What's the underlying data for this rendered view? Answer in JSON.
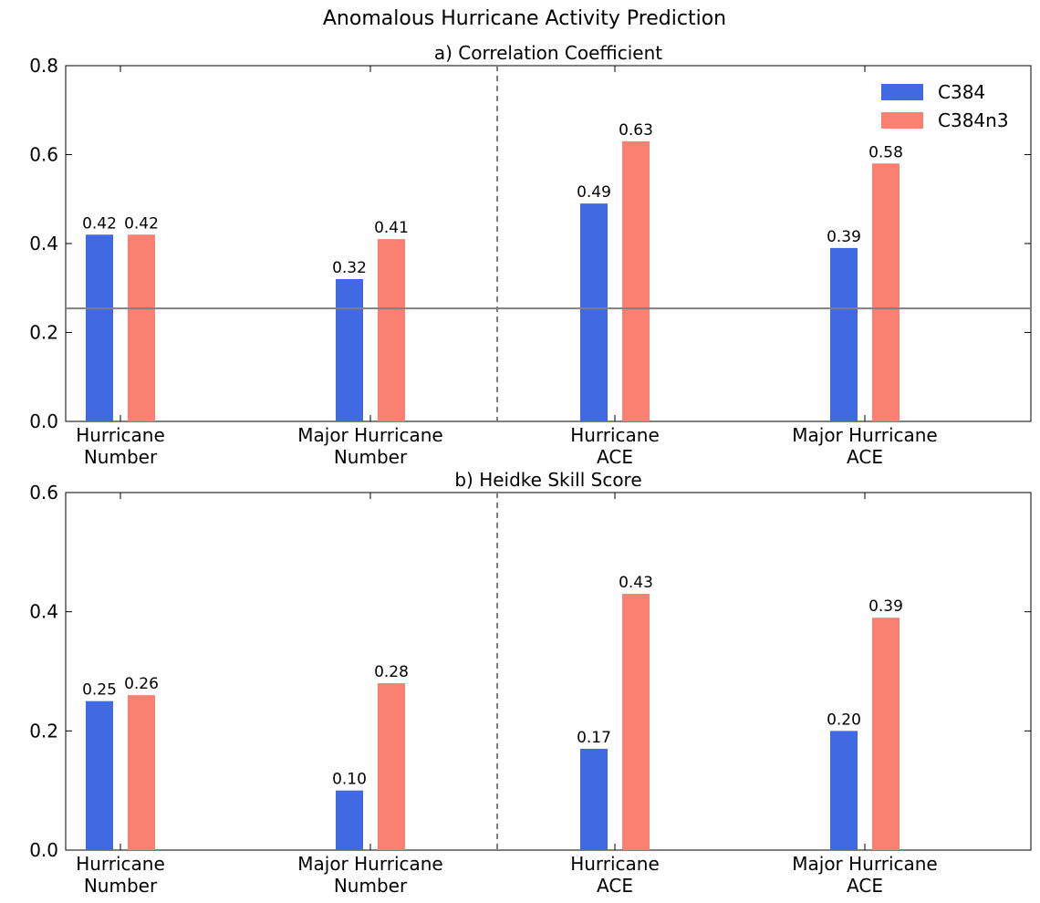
{
  "figure": {
    "title": "Anomalous Hurricane Activity Prediction"
  },
  "legend": {
    "placement": "top-right",
    "items": [
      {
        "label": "C384",
        "color": "#4169e1"
      },
      {
        "label": "C384n3",
        "color": "#fa8072"
      }
    ]
  },
  "chart_data": [
    {
      "type": "bar",
      "title": "a) Correlation Coefficient",
      "categories": [
        "Hurricane Number",
        "Major Hurricane Number",
        "Hurricane ACE",
        "Major Hurricane ACE"
      ],
      "category_lines": [
        [
          "Hurricane",
          "Number"
        ],
        [
          "Major Hurricane",
          "Number"
        ],
        [
          "Hurricane",
          "ACE"
        ],
        [
          "Major Hurricane",
          "ACE"
        ]
      ],
      "series": [
        {
          "name": "C384",
          "color": "#4169e1",
          "values": [
            0.42,
            0.32,
            0.49,
            0.39
          ],
          "labels": [
            "0.42",
            "0.32",
            "0.49",
            "0.39"
          ]
        },
        {
          "name": "C384n3",
          "color": "#fa8072",
          "values": [
            0.42,
            0.41,
            0.63,
            0.58
          ],
          "labels": [
            "0.42",
            "0.41",
            "0.63",
            "0.58"
          ]
        }
      ],
      "ylim": [
        0,
        0.8
      ],
      "yticks": [
        "0.0",
        "0.2",
        "0.4",
        "0.6",
        "0.8"
      ],
      "reference_line": {
        "y": 0.254,
        "color": "#808080"
      },
      "divider": "dashed vertical line between Major Hurricane Number and Hurricane ACE",
      "grid": false,
      "legend_placement": "top-right"
    },
    {
      "type": "bar",
      "title": "b) Heidke Skill Score",
      "categories": [
        "Hurricane Number",
        "Major Hurricane Number",
        "Hurricane ACE",
        "Major Hurricane ACE"
      ],
      "category_lines": [
        [
          "Hurricane",
          "Number"
        ],
        [
          "Major Hurricane",
          "Number"
        ],
        [
          "Hurricane",
          "ACE"
        ],
        [
          "Major Hurricane",
          "ACE"
        ]
      ],
      "series": [
        {
          "name": "C384",
          "color": "#4169e1",
          "values": [
            0.25,
            0.1,
            0.17,
            0.2
          ],
          "labels": [
            "0.25",
            "0.10",
            "0.17",
            "0.20"
          ]
        },
        {
          "name": "C384n3",
          "color": "#fa8072",
          "values": [
            0.26,
            0.28,
            0.43,
            0.39
          ],
          "labels": [
            "0.26",
            "0.28",
            "0.43",
            "0.39"
          ]
        }
      ],
      "ylim": [
        0,
        0.6
      ],
      "yticks": [
        "0.0",
        "0.2",
        "0.4",
        "0.6"
      ],
      "divider": "dashed vertical line between Major Hurricane Number and Hurricane ACE",
      "grid": false
    }
  ]
}
